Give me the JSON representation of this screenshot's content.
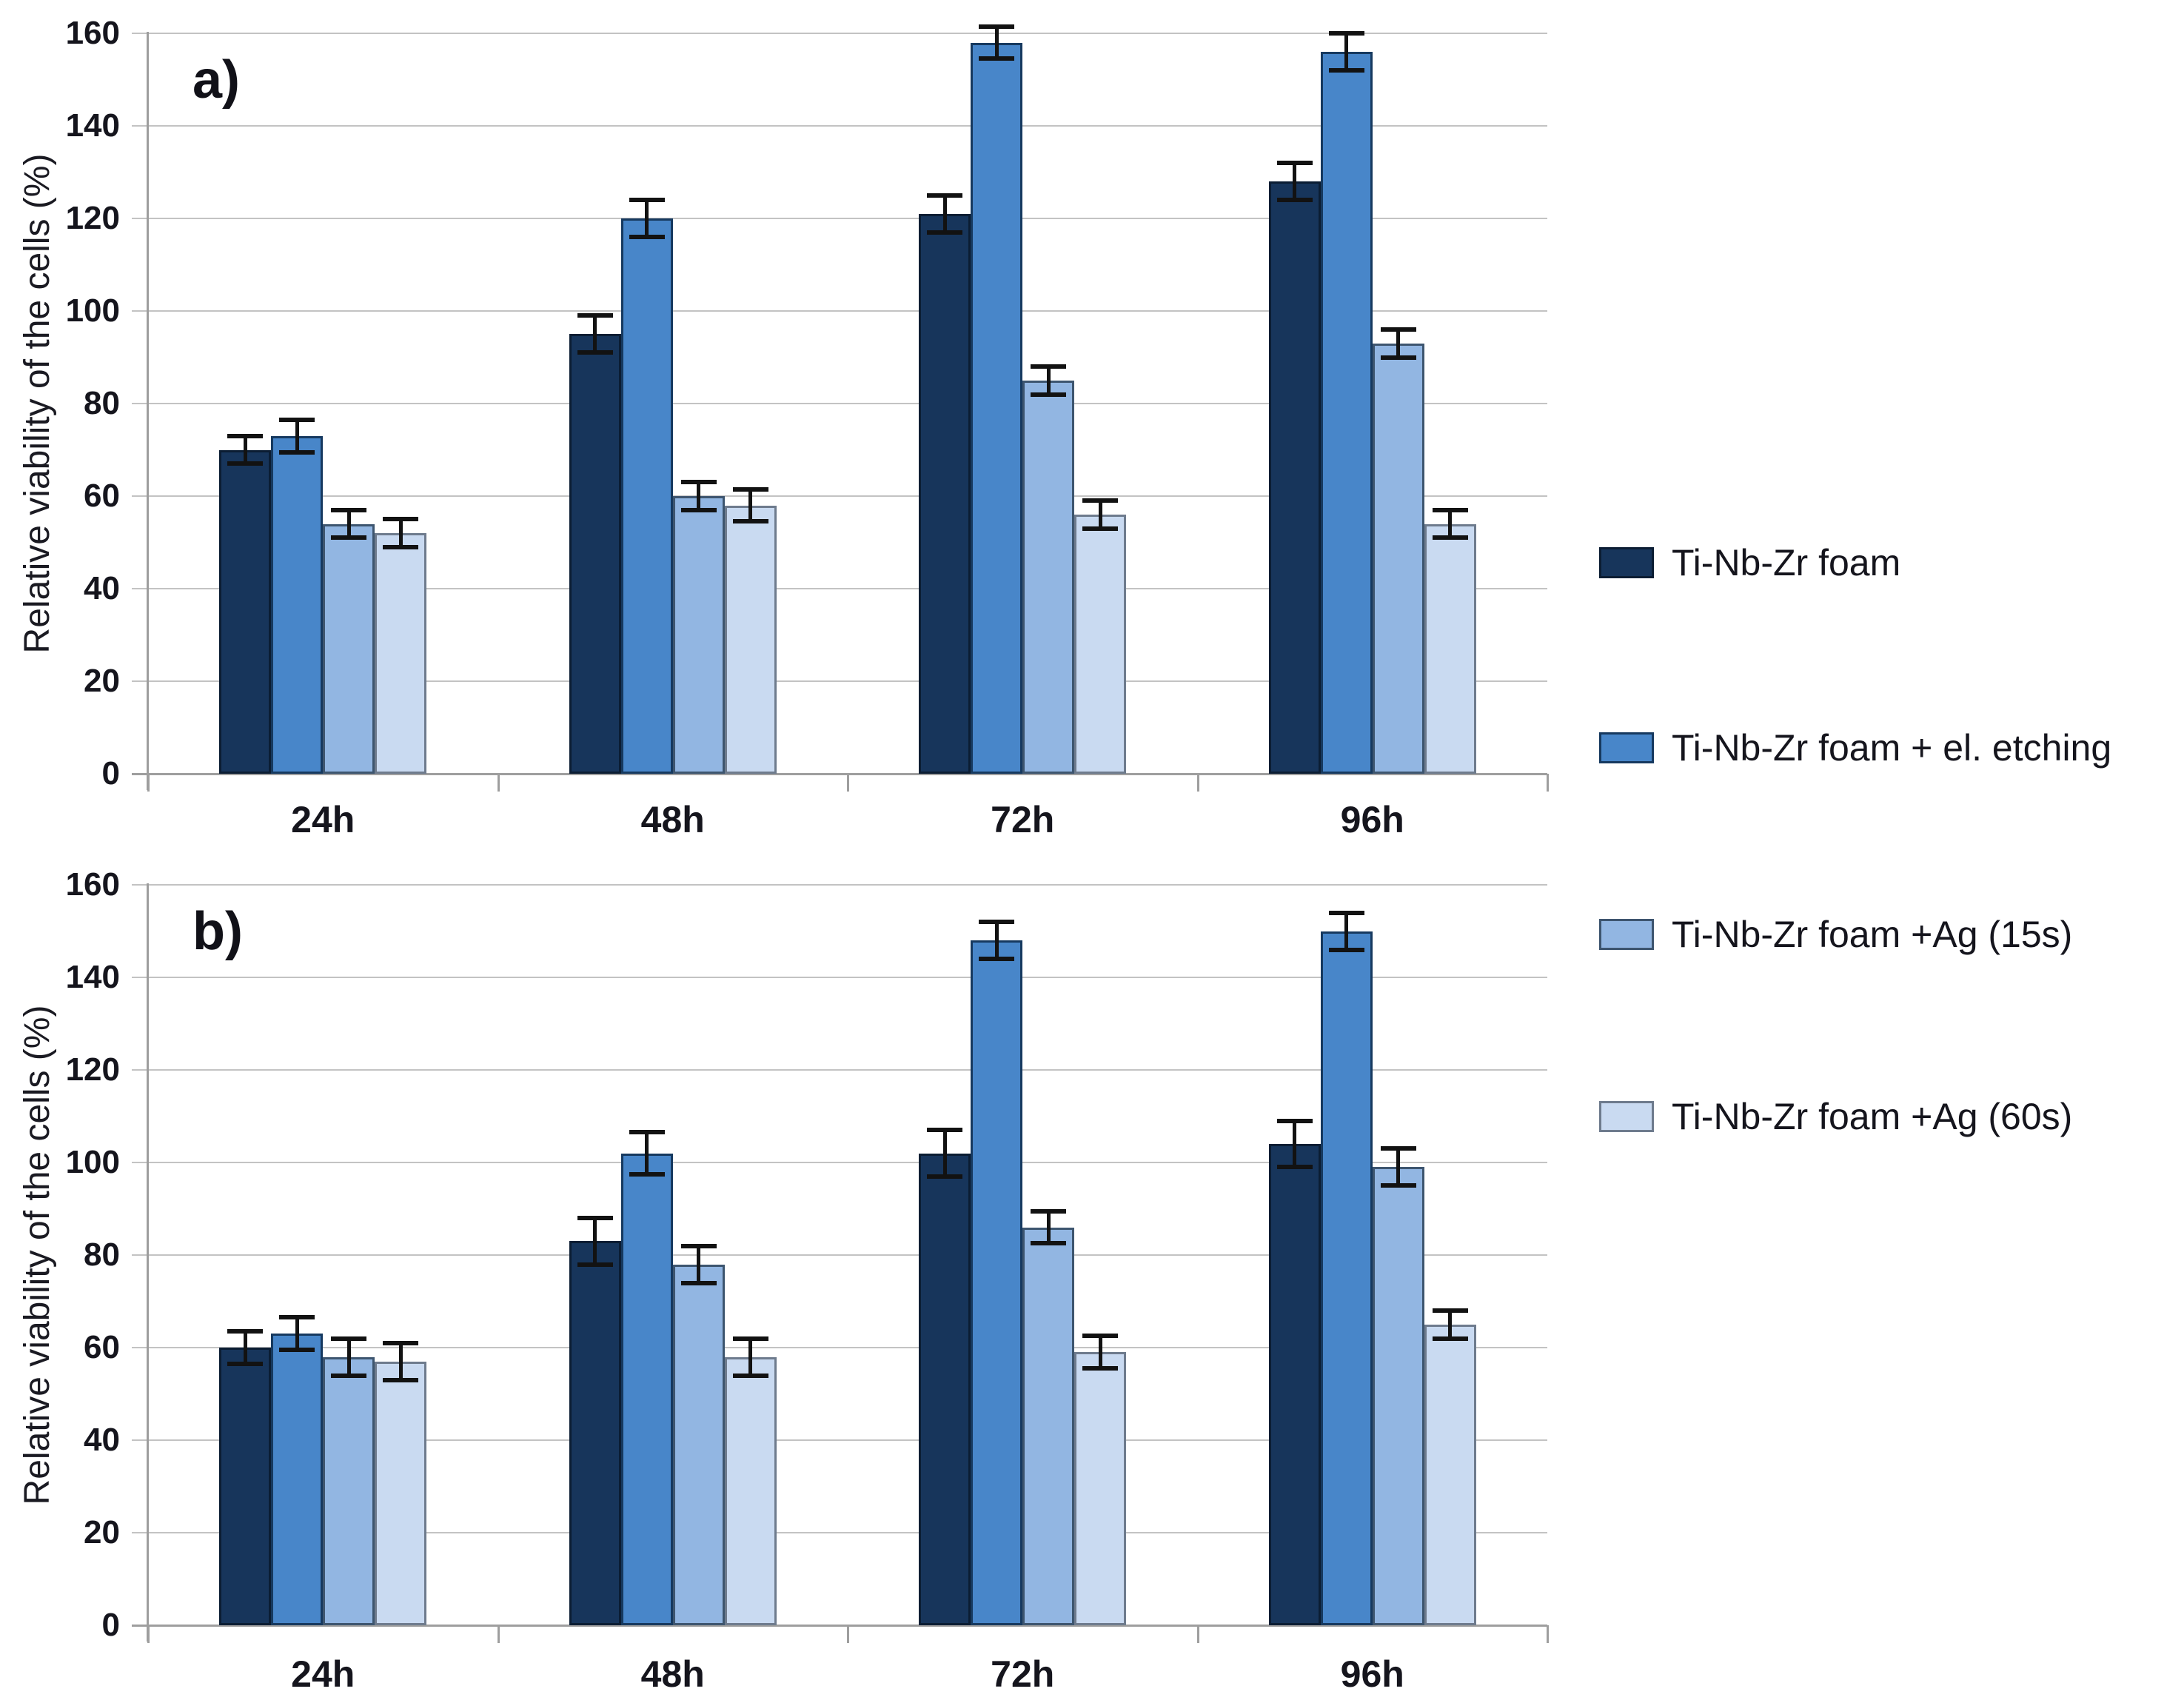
{
  "figure": {
    "background": "#FFFFFF",
    "panel_a_label": "a)",
    "panel_b_label": "b)",
    "y_axis_title_a": "Relative viability of the cells (%)",
    "y_axis_title_b": "Relative viability of the cells (%)"
  },
  "style": {
    "series_colors": [
      "#17355B",
      "#4886C9",
      "#92B6E2",
      "#C9DAF1"
    ],
    "series_border_colors": [
      "#0B1D33",
      "#16395F",
      "#3D556F",
      "#6E7B8D"
    ],
    "grid_color": "#C3C3C3",
    "axis_color": "#9E9E9E",
    "error_bar_color": "#121212",
    "text_color": "#15151D"
  },
  "legend": {
    "position": "right",
    "entries": [
      {
        "label": "Ti-Nb-Zr foam",
        "color": "#17355B"
      },
      {
        "label": "Ti-Nb-Zr foam + el. etching",
        "color": "#4886C9"
      },
      {
        "label": "Ti-Nb-Zr foam +Ag (15s)",
        "color": "#92B6E2"
      },
      {
        "label": "Ti-Nb-Zr foam +Ag (60s)",
        "color": "#C9DAF1"
      }
    ]
  },
  "chart_data": [
    {
      "id": "a",
      "type": "bar",
      "panel_label": "a)",
      "ylabel": "Relative viability of the cells (%)",
      "xlabel": "",
      "ylim": [
        0,
        160
      ],
      "ytick_step": 20,
      "y_tick_labels": [
        "0",
        "20",
        "40",
        "60",
        "80",
        "100",
        "120",
        "140",
        "160"
      ],
      "grid": true,
      "categories": [
        "24h",
        "48h",
        "72h",
        "96h"
      ],
      "series": [
        {
          "name": "Ti-Nb-Zr foam",
          "values": [
            70,
            95,
            121,
            128
          ],
          "errors": [
            3,
            4,
            4,
            4
          ]
        },
        {
          "name": "Ti-Nb-Zr foam + el. etching",
          "values": [
            73,
            120,
            158,
            156
          ],
          "errors": [
            3.5,
            4,
            3.5,
            4
          ]
        },
        {
          "name": "Ti-Nb-Zr foam +Ag (15s)",
          "values": [
            54,
            60,
            85,
            93
          ],
          "errors": [
            3,
            3,
            3,
            3
          ]
        },
        {
          "name": "Ti-Nb-Zr foam +Ag (60s)",
          "values": [
            52,
            58,
            56,
            54
          ],
          "errors": [
            3,
            3.5,
            3,
            3
          ]
        }
      ]
    },
    {
      "id": "b",
      "type": "bar",
      "panel_label": "b)",
      "ylabel": "Relative viability of the cells (%)",
      "xlabel": "",
      "ylim": [
        0,
        160
      ],
      "ytick_step": 20,
      "y_tick_labels": [
        "0",
        "20",
        "40",
        "60",
        "80",
        "100",
        "120",
        "140",
        "160"
      ],
      "grid": true,
      "categories": [
        "24h",
        "48h",
        "72h",
        "96h"
      ],
      "series": [
        {
          "name": "Ti-Nb-Zr foam",
          "values": [
            60,
            83,
            102,
            104
          ],
          "errors": [
            3.5,
            5,
            5,
            5
          ]
        },
        {
          "name": "Ti-Nb-Zr foam + el. etching",
          "values": [
            63,
            102,
            148,
            150
          ],
          "errors": [
            3.5,
            4.5,
            4,
            4
          ]
        },
        {
          "name": "Ti-Nb-Zr foam +Ag (15s)",
          "values": [
            58,
            78,
            86,
            99
          ],
          "errors": [
            4,
            4,
            3.5,
            4
          ]
        },
        {
          "name": "Ti-Nb-Zr foam +Ag (60s)",
          "values": [
            57,
            58,
            59,
            65
          ],
          "errors": [
            4,
            4,
            3.5,
            3
          ]
        }
      ]
    }
  ]
}
